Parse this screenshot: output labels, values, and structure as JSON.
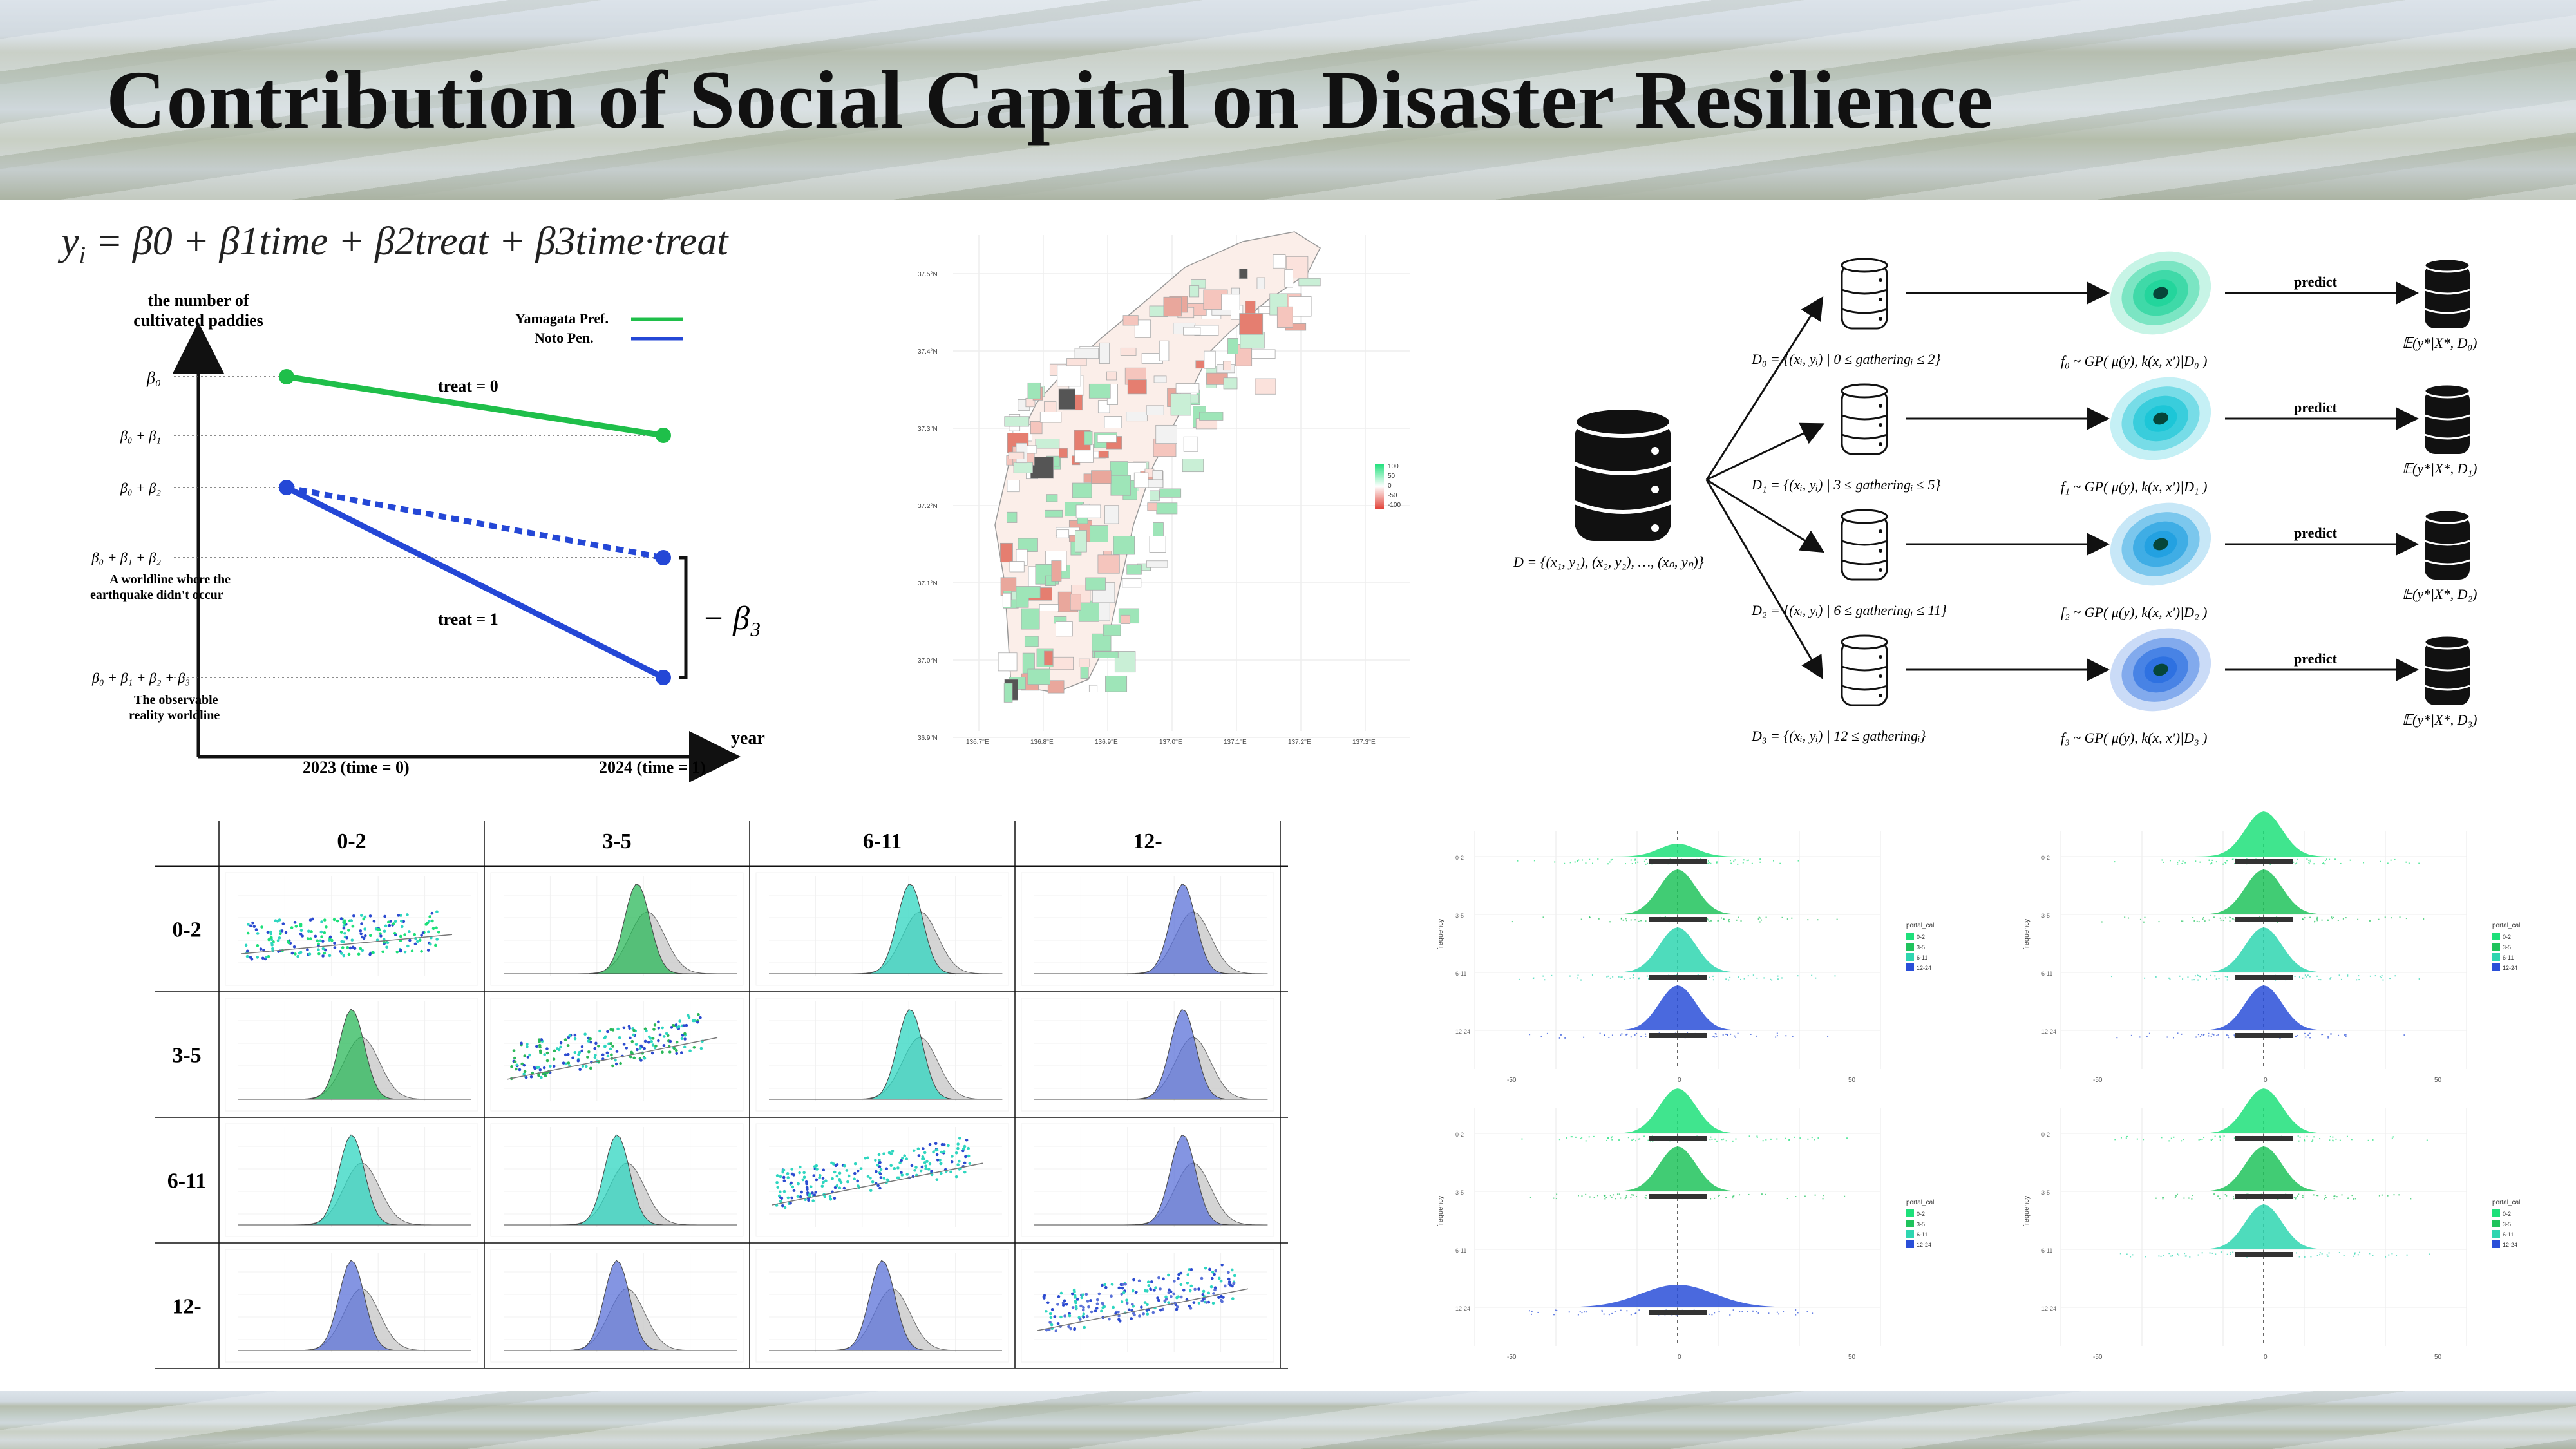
{
  "title": "Contribution of Social Capital on Disaster Resilience",
  "formula": {
    "lhs": "y",
    "sub_i": "i",
    "rhs": " = β0 + β1time + β2treat + β3time·treat"
  },
  "did_diagram": {
    "y_axis_label_line1": "the number of",
    "y_axis_label_line2": "cultivated paddies",
    "x_axis_label": "year",
    "x_tick_1": "2023 (time = 0)",
    "x_tick_2": "2024 (time = 1)",
    "legend_yamagata": "Yamagata Pref.",
    "legend_noto": "Noto Pen.",
    "y_label_b0": "β₀",
    "y_label_b0b1": "β₀ + β₁",
    "y_label_b0b2": "β₀ + β₂",
    "y_label_b0b1b2": "β₀ + β₁ + β₂",
    "y_label_b0b1b2b3": "β₀ + β₁ + β₂ + β₃",
    "treat0": "treat = 0",
    "treat1": "treat = 1",
    "note_no_eq_1": "A worldline where the",
    "note_no_eq_2": "earthquake didn't occur",
    "note_obs_1": "The observable",
    "note_obs_2": "reality worldline",
    "beta3": "− β₃",
    "colors": {
      "green": "#1fbf4a",
      "blue": "#2447d6"
    }
  },
  "gp_flow": {
    "D_all": "D = {(x₁, y₁), (x₂, y₂), …, (xₙ, yₙ)}",
    "rows": [
      {
        "D": "D₀ = {(xᵢ, yᵢ) | 0 ≤ gatheringᵢ ≤ 2}",
        "f": "f₀ ~ GP( μ(y), k(x, x′)|D₀ )",
        "predict": "predict",
        "E": "𝔼(y*|X*, D₀)",
        "color": "#1fd39a"
      },
      {
        "D": "D₁ = {(xᵢ, yᵢ) | 3 ≤ gatheringᵢ ≤ 5}",
        "f": "f₁ ~ GP( μ(y), k(x, x′)|D₁ )",
        "predict": "predict",
        "E": "𝔼(y*|X*, D₁)",
        "color": "#18c4d6"
      },
      {
        "D": "D₂ = {(xᵢ, yᵢ) | 6 ≤ gatheringᵢ ≤ 11}",
        "f": "f₂ ~ GP( μ(y), k(x, x′)|D₂ )",
        "predict": "predict",
        "E": "𝔼(y*|X*, D₂)",
        "color": "#1e9fe0"
      },
      {
        "D": "D₃ = {(xᵢ, yᵢ) | 12 ≤ gatheringᵢ}",
        "f": "f₃ ~ GP( μ(y), k(x, x′)|D₃ )",
        "predict": "predict",
        "E": "𝔼(y*|X*, D₃)",
        "color": "#2a6fe0"
      }
    ]
  },
  "matrix": {
    "cols": [
      "0-2",
      "3-5",
      "6-11",
      "12-"
    ],
    "rows": [
      "0-2",
      "3-5",
      "6-11",
      "12-"
    ],
    "colors": [
      "#1ee07a",
      "#2bb85a",
      "#2fd6c0",
      "#5b72d8"
    ]
  },
  "map": {
    "lat_ticks": [
      "37.5°N",
      "37.4°N",
      "37.3°N",
      "37.2°N",
      "37.1°N",
      "37.0°N",
      "36.9°N"
    ],
    "lon_ticks": [
      "136.7°E",
      "136.8°E",
      "136.9°E",
      "137.0°E",
      "137.1°E",
      "137.2°E",
      "137.3°E"
    ],
    "legend": [
      "100",
      "50",
      "0",
      "-50",
      "-100"
    ]
  },
  "ridges": {
    "y_label": "frequency",
    "legend_title": "portal_call",
    "legend_items": [
      "0-2",
      "3-5",
      "6-11",
      "12-24"
    ],
    "row_labels": [
      "0-2",
      "3-5",
      "6-11",
      "12-24"
    ],
    "x_ticks": [
      "-50",
      "0",
      "50"
    ],
    "panels": [
      {
        "present": [
          true,
          true,
          true,
          true
        ]
      },
      {
        "present": [
          true,
          true,
          true,
          true
        ]
      },
      {
        "present": [
          true,
          true,
          false,
          true
        ]
      },
      {
        "present": [
          true,
          true,
          true,
          false
        ]
      }
    ]
  }
}
